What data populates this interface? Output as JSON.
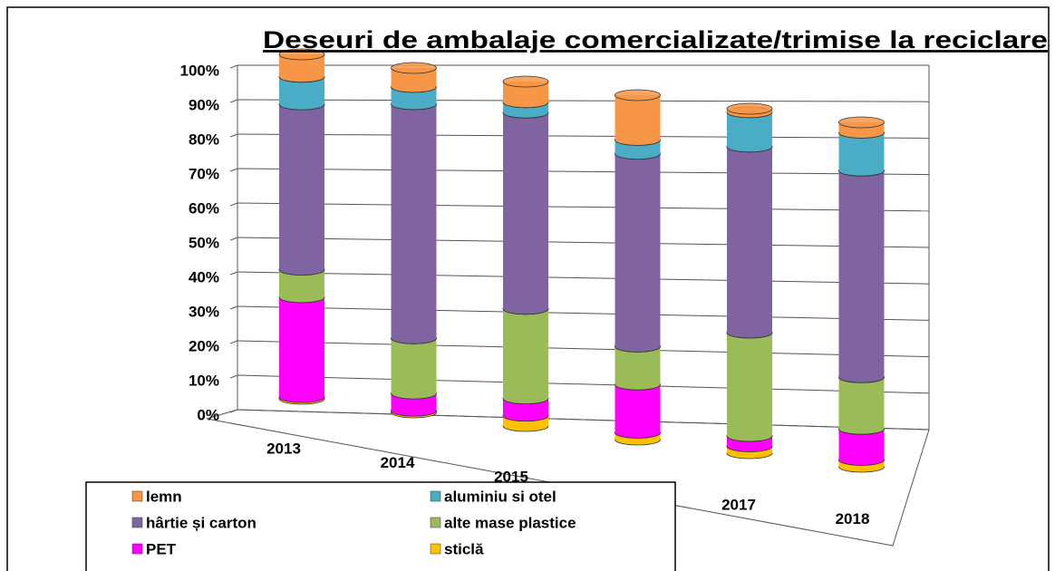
{
  "chart_data": {
    "type": "bar",
    "stacked": true,
    "title": "Deseuri de ambalaje comercializate/trimise la reciclare",
    "categories": [
      "2013",
      "2014",
      "2015",
      null,
      "2017",
      "2018"
    ],
    "series": [
      {
        "name": "sticlă",
        "color": "#ffc000",
        "values": [
          0.5,
          0.5,
          3,
          2,
          2,
          2
        ]
      },
      {
        "name": "PET",
        "color": "#ff00ff",
        "values": [
          29,
          5,
          5,
          14,
          3,
          9
        ]
      },
      {
        "name": "alte mase plastice",
        "color": "#9bbb59",
        "values": [
          8,
          16,
          26,
          11,
          30,
          15
        ]
      },
      {
        "name": "hârtie și carton",
        "color": "#8064a2",
        "values": [
          48,
          68,
          57,
          56,
          54,
          60
        ]
      },
      {
        "name": "aluminiu si otel",
        "color": "#4bacc6",
        "values": [
          8,
          5,
          3,
          4,
          10,
          11
        ]
      },
      {
        "name": "lemn",
        "color": "#f79646",
        "values": [
          6.5,
          5.5,
          6,
          13,
          1,
          3
        ]
      }
    ],
    "legend_order": [
      5,
      4,
      3,
      2,
      1,
      0
    ],
    "ylim": [
      0,
      100
    ],
    "yticks": [
      {
        "value": 0,
        "label": "0%"
      },
      {
        "value": 10,
        "label": "10%"
      },
      {
        "value": 20,
        "label": "20%"
      },
      {
        "value": 30,
        "label": "30%"
      },
      {
        "value": 40,
        "label": "40%"
      },
      {
        "value": 50,
        "label": "50%"
      },
      {
        "value": 60,
        "label": "60%"
      },
      {
        "value": 70,
        "label": "70%"
      },
      {
        "value": 80,
        "label": "80%"
      },
      {
        "value": 90,
        "label": "90%"
      },
      {
        "value": 100,
        "label": "100%"
      }
    ],
    "grid": true
  }
}
